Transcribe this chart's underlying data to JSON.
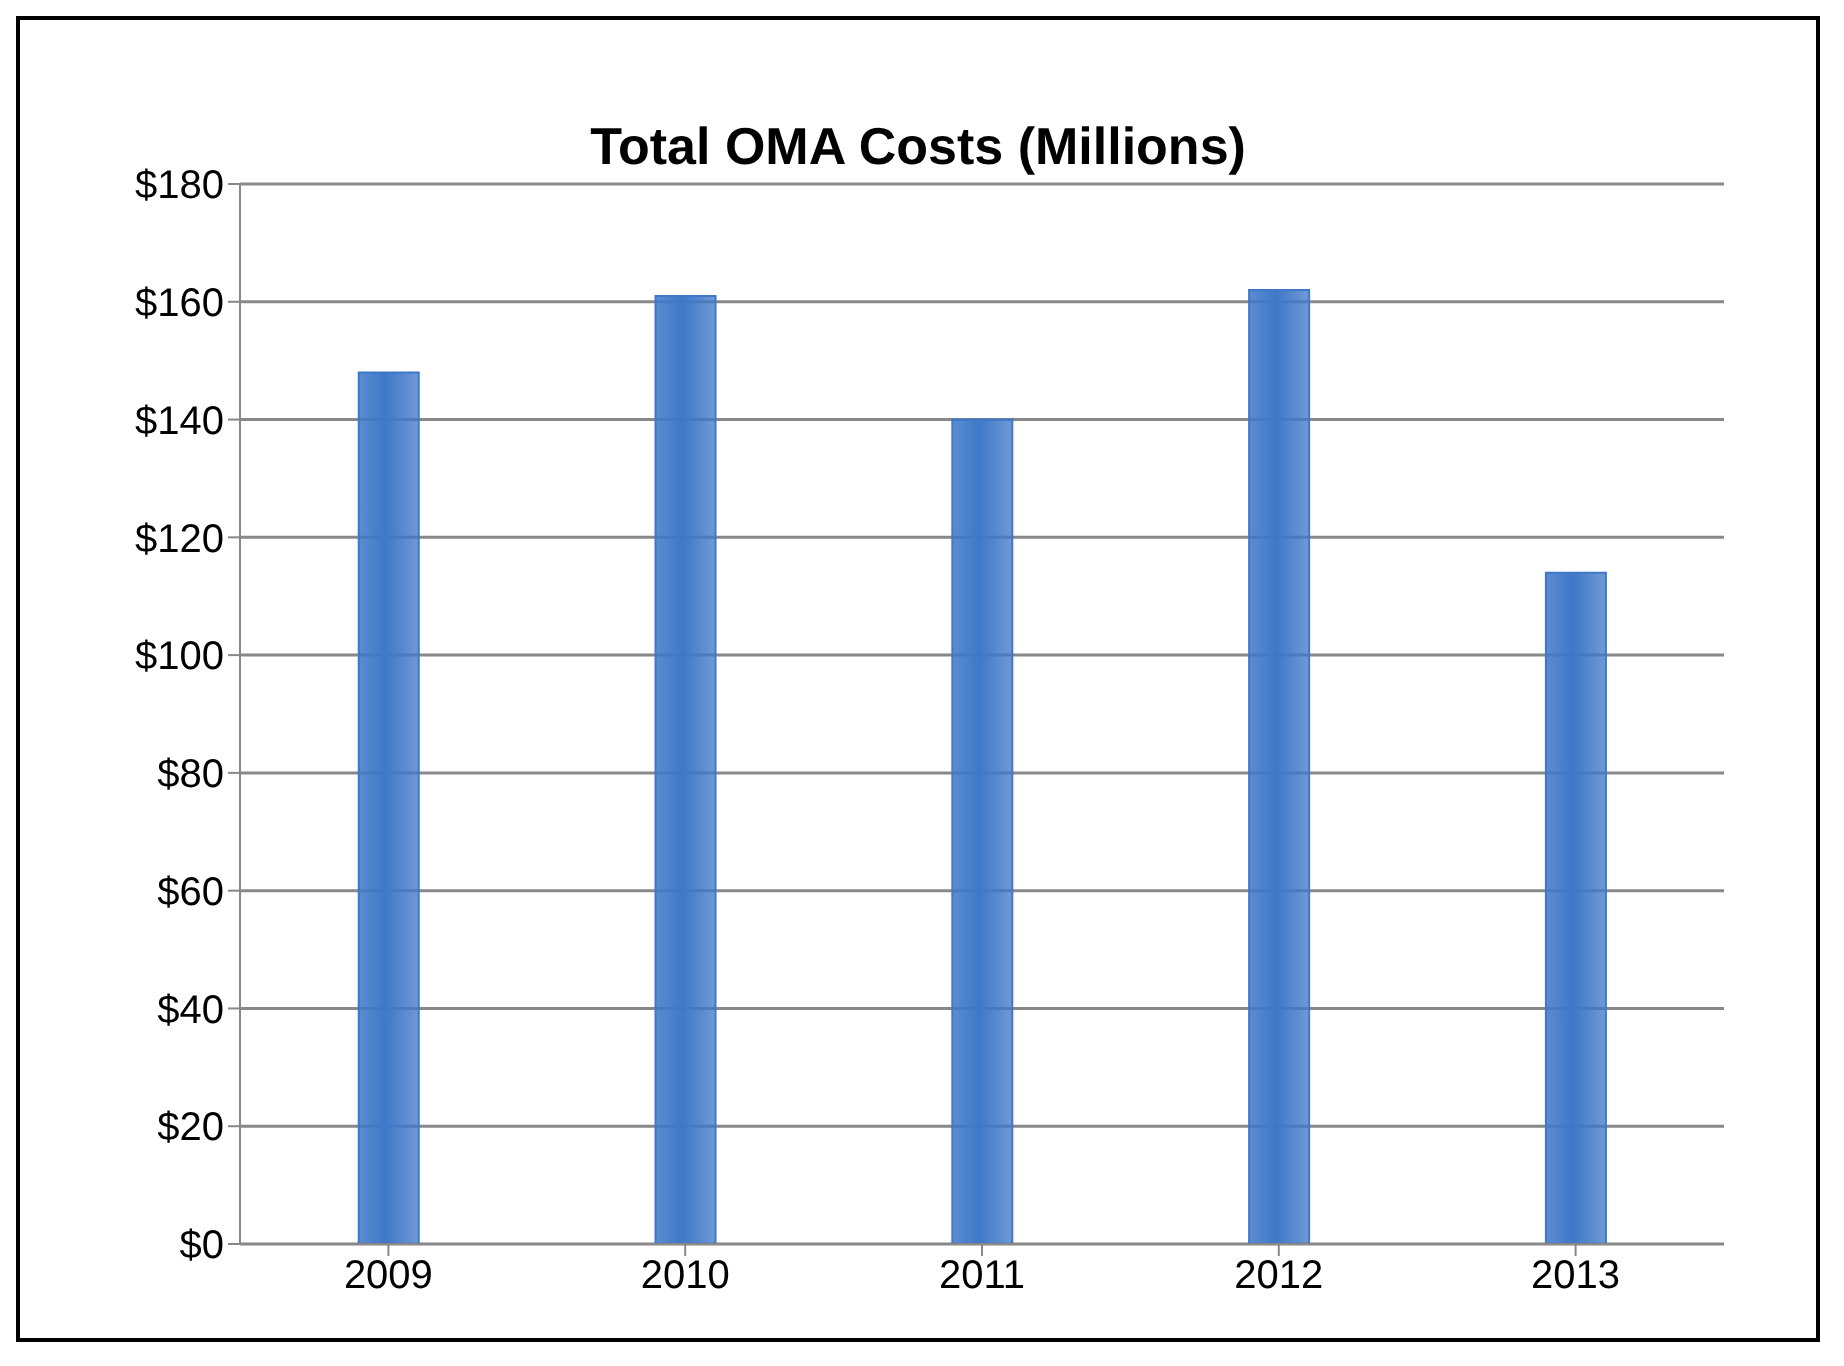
{
  "chart_data": {
    "type": "bar",
    "title": "Total OMA Costs (Millions)",
    "categories": [
      "2009",
      "2010",
      "2011",
      "2012",
      "2013"
    ],
    "values": [
      148,
      161,
      140,
      162,
      114
    ],
    "color": "#3f78c8",
    "ylim": [
      0,
      180
    ],
    "yticks": [
      {
        "value": 0,
        "label": "$0"
      },
      {
        "value": 20,
        "label": "$20"
      },
      {
        "value": 40,
        "label": "$40"
      },
      {
        "value": 60,
        "label": "$60"
      },
      {
        "value": 80,
        "label": "$80"
      },
      {
        "value": 100,
        "label": "$100"
      },
      {
        "value": 120,
        "label": "$120"
      },
      {
        "value": 140,
        "label": "$140"
      },
      {
        "value": 160,
        "label": "$160"
      },
      {
        "value": 180,
        "label": "$180"
      }
    ],
    "grid": "y"
  }
}
